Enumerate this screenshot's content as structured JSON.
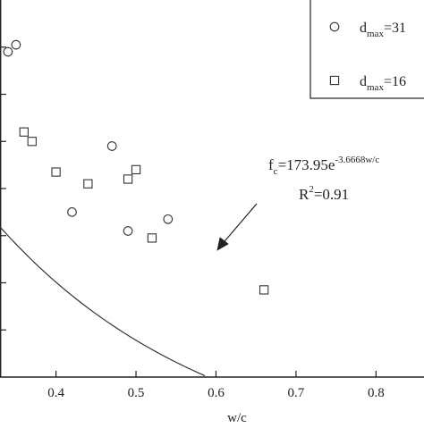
{
  "chart_data": {
    "type": "scatter",
    "xlabel": "w/c",
    "ylabel": "",
    "xlim": [
      0.33,
      0.86
    ],
    "ylim": [
      20.0,
      100.0
    ],
    "x_ticks": [
      0.4,
      0.5,
      0.6,
      0.7,
      0.8
    ],
    "x_tick_labels": [
      "0.4",
      "0.5",
      "0.6",
      "0.7",
      "0.8"
    ],
    "grid": false,
    "legend_position": "top-right",
    "series": [
      {
        "name": "dmax=31",
        "legend": {
          "base": "d",
          "sub": "max",
          "rest": "=31"
        },
        "marker": "circle",
        "points": [
          {
            "x": 0.34,
            "y": 89.0
          },
          {
            "x": 0.35,
            "y": 90.5
          },
          {
            "x": 0.42,
            "y": 55.0
          },
          {
            "x": 0.47,
            "y": 69.0
          },
          {
            "x": 0.49,
            "y": 51.0
          },
          {
            "x": 0.54,
            "y": 53.5
          }
        ]
      },
      {
        "name": "dmax=16",
        "legend": {
          "base": "d",
          "sub": "max",
          "rest": "=16"
        },
        "marker": "square",
        "points": [
          {
            "x": 0.36,
            "y": 72.0
          },
          {
            "x": 0.37,
            "y": 70.0
          },
          {
            "x": 0.4,
            "y": 63.5
          },
          {
            "x": 0.44,
            "y": 61.0
          },
          {
            "x": 0.49,
            "y": 62.0
          },
          {
            "x": 0.5,
            "y": 64.0
          },
          {
            "x": 0.52,
            "y": 49.5
          },
          {
            "x": 0.66,
            "y": 38.5
          }
        ]
      }
    ],
    "fit": {
      "a": 173.95,
      "b": -3.6668,
      "label": {
        "base": "f",
        "sub": "c",
        "mid": "=173.95e",
        "sup": "-3.6668w/c"
      },
      "r2_label": {
        "base": "R",
        "sup": "2",
        "rest": "=0.91"
      }
    }
  }
}
